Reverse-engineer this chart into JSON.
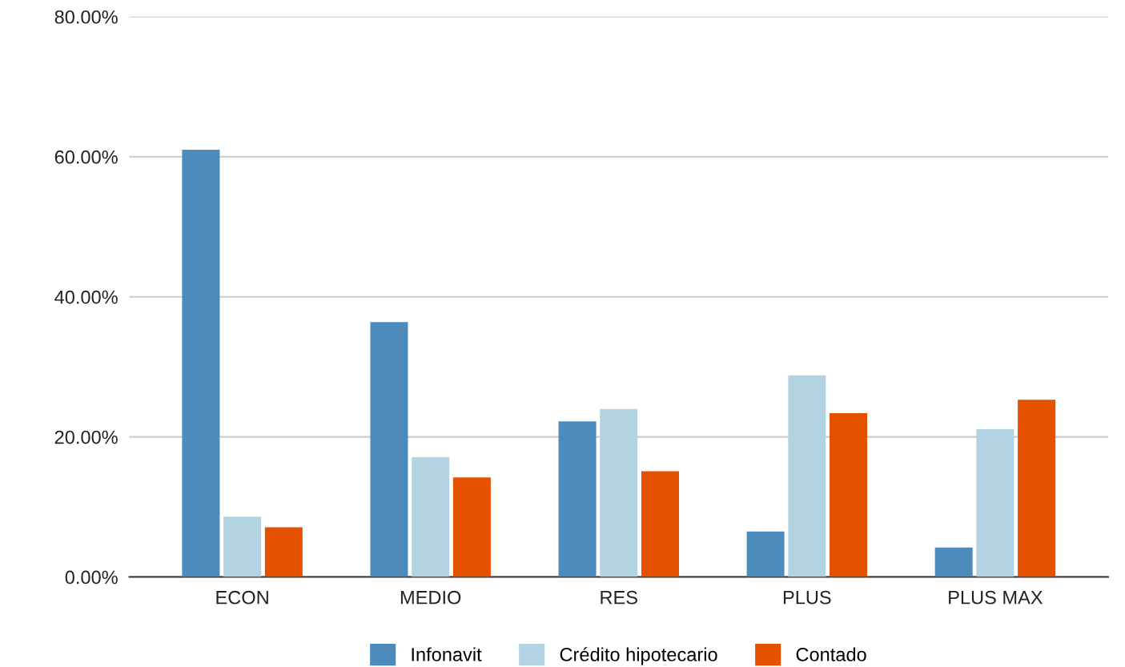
{
  "chart_data": {
    "type": "bar",
    "categories": [
      "ECON",
      "MEDIO",
      "RES",
      "PLUS",
      "PLUS MAX"
    ],
    "series": [
      {
        "name": "Infonavit",
        "color": "#4e8bbd",
        "values": [
          61.0,
          36.4,
          22.2,
          6.5,
          4.2
        ]
      },
      {
        "name": "Crédito hipotecario",
        "color": "#b2d3e1",
        "values": [
          8.6,
          17.1,
          24.0,
          28.8,
          21.1
        ]
      },
      {
        "name": "Contado",
        "color": "#e65100",
        "values": [
          7.1,
          14.2,
          15.1,
          23.4,
          25.3
        ]
      }
    ],
    "ylim": [
      0,
      80
    ],
    "yticks": [
      {
        "value": 0,
        "label": "0.00%"
      },
      {
        "value": 20,
        "label": "20.00%"
      },
      {
        "value": 40,
        "label": "40.00%"
      },
      {
        "value": 60,
        "label": "60.00%"
      },
      {
        "value": 80,
        "label": "80.00%"
      }
    ],
    "grid": "y",
    "legend": "bottom"
  }
}
